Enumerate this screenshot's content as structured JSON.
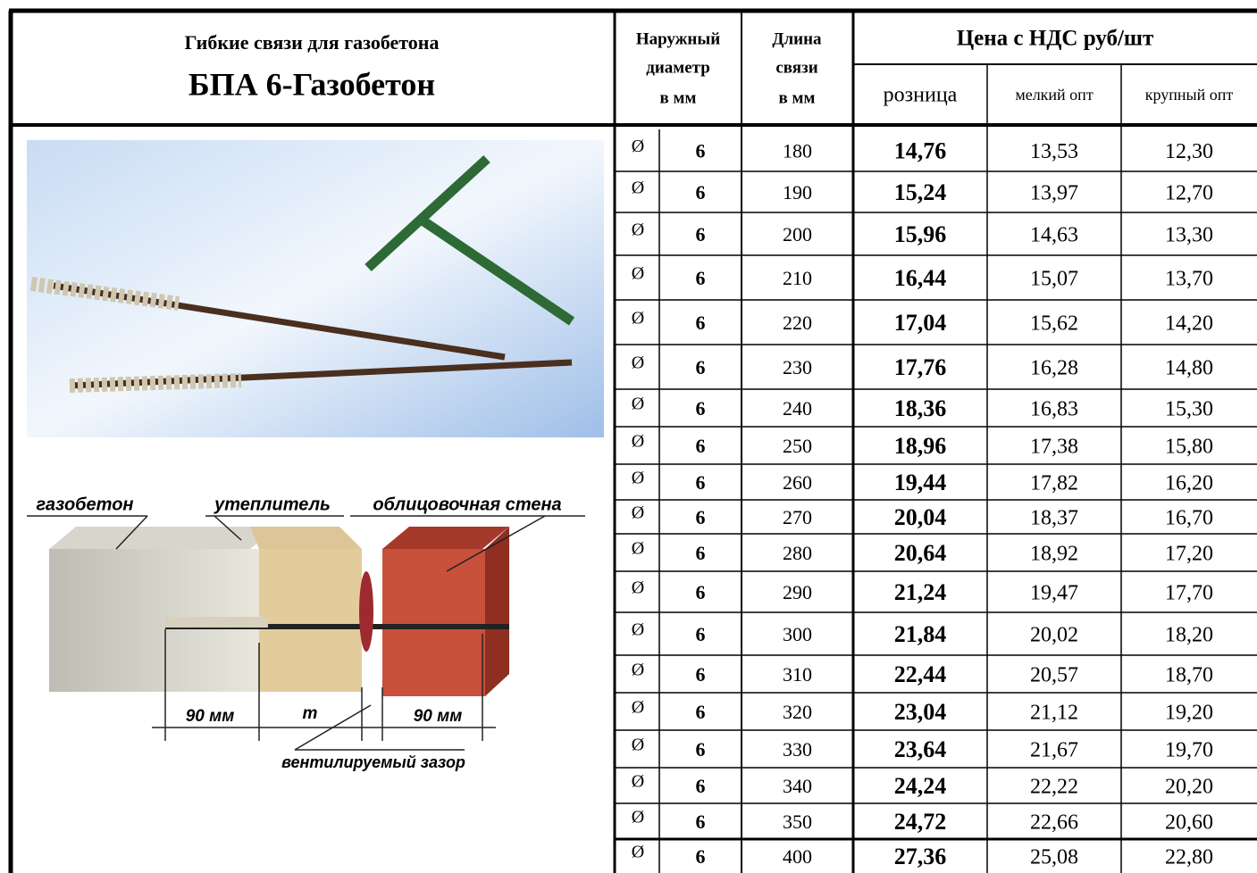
{
  "header": {
    "title": "Гибкие связи для газобетона",
    "product": "БПА 6-Газобетон"
  },
  "table": {
    "columns": {
      "diameter": [
        "Наружный",
        "диаметр",
        "в мм"
      ],
      "length": [
        "Длина",
        "связи",
        "в мм"
      ],
      "price": "Цена с НДС руб/шт",
      "price_types": [
        "розница",
        "мелкий опт",
        "крупный опт"
      ]
    },
    "rows": [
      [
        "Ø",
        "6",
        "180",
        "14,76",
        "13,53",
        "12,30"
      ],
      [
        "Ø",
        "6",
        "190",
        "15,24",
        "13,97",
        "12,70"
      ],
      [
        "Ø",
        "6",
        "200",
        "15,96",
        "14,63",
        "13,30"
      ],
      [
        "Ø",
        "6",
        "210",
        "16,44",
        "15,07",
        "13,70"
      ],
      [
        "Ø",
        "6",
        "220",
        "17,04",
        "15,62",
        "14,20"
      ],
      [
        "Ø",
        "6",
        "230",
        "17,76",
        "16,28",
        "14,80"
      ],
      [
        "Ø",
        "6",
        "240",
        "18,36",
        "16,83",
        "15,30"
      ],
      [
        "Ø",
        "6",
        "250",
        "18,96",
        "17,38",
        "15,80"
      ],
      [
        "Ø",
        "6",
        "260",
        "19,44",
        "17,82",
        "16,20"
      ],
      [
        "Ø",
        "6",
        "270",
        "20,04",
        "18,37",
        "16,70"
      ],
      [
        "Ø",
        "6",
        "280",
        "20,64",
        "18,92",
        "17,20"
      ],
      [
        "Ø",
        "6",
        "290",
        "21,24",
        "19,47",
        "17,70"
      ],
      [
        "Ø",
        "6",
        "300",
        "21,84",
        "20,02",
        "18,20"
      ],
      [
        "Ø",
        "6",
        "310",
        "22,44",
        "20,57",
        "18,70"
      ],
      [
        "Ø",
        "6",
        "320",
        "23,04",
        "21,12",
        "19,20"
      ],
      [
        "Ø",
        "6",
        "330",
        "23,64",
        "21,67",
        "19,70"
      ],
      [
        "Ø",
        "6",
        "340",
        "24,24",
        "22,22",
        "20,20"
      ],
      [
        "Ø",
        "6",
        "350",
        "24,72",
        "22,66",
        "20,60"
      ],
      [
        "Ø",
        "6",
        "400",
        "27,36",
        "25,08",
        "22,80"
      ]
    ]
  },
  "diagram": {
    "labels": {
      "aerated_concrete": "газобетон",
      "insulation": "утеплитель",
      "facing_wall": "облицовочная стена",
      "dim_left": "90 мм",
      "dim_mid": "т",
      "dim_right": "90 мм",
      "air_gap": "вентилируемый зазор"
    }
  }
}
